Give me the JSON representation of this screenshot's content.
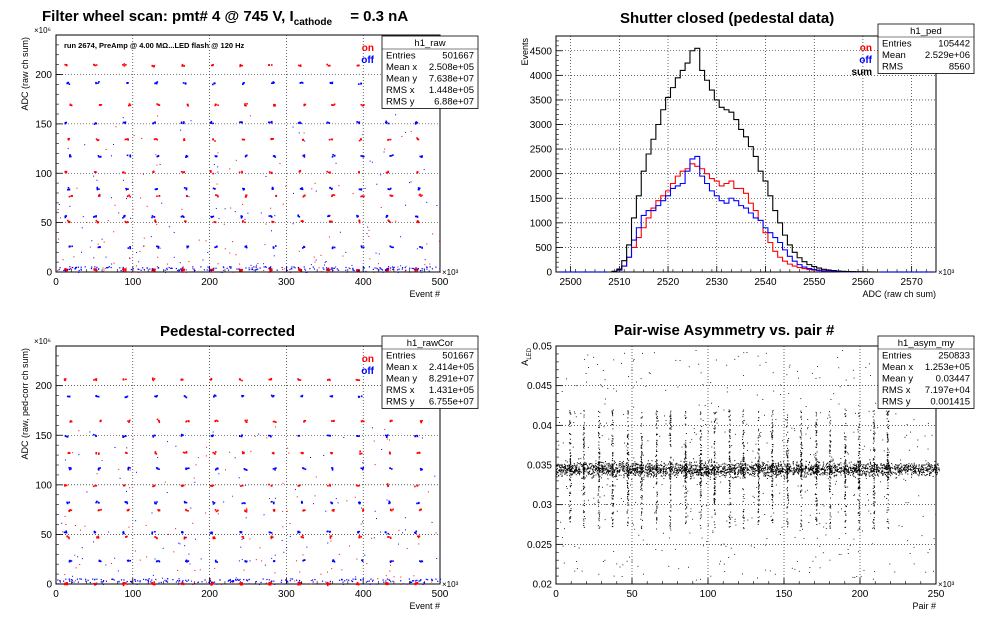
{
  "chart_data": [
    {
      "id": "raw",
      "type": "scatter",
      "title_main": "Filter wheel scan: pmt#   4 @   745 V, I",
      "title_sub": "cathode",
      "title_tail": "= 0.3 nA",
      "annotation": "run 2674, PreAmp @ 4.00 MΩ...LED flash @  120 Hz",
      "xlabel": "Event #",
      "ylabel": "ADC (raw ch sum)",
      "x_multiplier": "×10³",
      "y_multiplier": "×10⁶",
      "xlim": [
        0,
        500
      ],
      "ylim": [
        0,
        240
      ],
      "xticks": [
        "0",
        "100",
        "200",
        "300",
        "400",
        "500"
      ],
      "yticks": [
        "0",
        "50",
        "100",
        "150",
        "200"
      ],
      "grid": true,
      "legend": [
        {
          "label": "on",
          "color": "#ff0000"
        },
        {
          "label": "off",
          "color": "#0000ff"
        }
      ],
      "stats": {
        "name": "h1_raw",
        "rows": [
          [
            "Entries",
            "501667"
          ],
          [
            "Mean x",
            "2.508e+05"
          ],
          [
            "Mean y",
            "7.638e+07"
          ],
          [
            "RMS x",
            "1.448e+05"
          ],
          [
            "RMS y",
            "6.88e+07"
          ]
        ]
      },
      "levels": [
        210,
        192,
        170,
        152,
        135,
        118,
        102,
        85,
        78,
        57,
        52,
        26,
        3
      ],
      "cluster_period": 38
    },
    {
      "id": "ped",
      "type": "line",
      "title": "Shutter closed (pedestal data)",
      "xlabel": "ADC (raw ch sum)",
      "ylabel": "Events",
      "x_multiplier": "×10³",
      "xlim": [
        2497,
        2575
      ],
      "ylim": [
        0,
        4800
      ],
      "xticks": [
        "2500",
        "2510",
        "2520",
        "2530",
        "2540",
        "2550",
        "2560",
        "2570"
      ],
      "yticks": [
        "0",
        "500",
        "1000",
        "1500",
        "2000",
        "2500",
        "3000",
        "3500",
        "4000",
        "4500"
      ],
      "grid": true,
      "legend": [
        {
          "label": "on",
          "color": "#ff0000"
        },
        {
          "label": "off",
          "color": "#0000ff"
        },
        {
          "label": "sum",
          "color": "#000000"
        }
      ],
      "stats": {
        "name": "h1_ped",
        "rows": [
          [
            "Entries",
            "105442"
          ],
          [
            "Mean",
            "2.529e+06"
          ],
          [
            "RMS",
            "8560"
          ]
        ]
      },
      "x": [
        2508,
        2509,
        2510,
        2511,
        2512,
        2513,
        2514,
        2515,
        2516,
        2517,
        2518,
        2519,
        2520,
        2521,
        2522,
        2523,
        2524,
        2525,
        2526,
        2527,
        2528,
        2529,
        2530,
        2531,
        2532,
        2533,
        2534,
        2535,
        2536,
        2537,
        2538,
        2539,
        2540,
        2541,
        2542,
        2543,
        2544,
        2545,
        2546,
        2547,
        2548,
        2549,
        2550,
        2551,
        2552,
        2553,
        2554,
        2555,
        2556,
        2557,
        2558,
        2559,
        2560,
        2561,
        2562,
        2563
      ],
      "series": [
        {
          "name": "on",
          "color": "#ff0000",
          "values": [
            0,
            10,
            40,
            120,
            300,
            500,
            700,
            900,
            1100,
            1300,
            1450,
            1550,
            1650,
            1800,
            1950,
            2050,
            2100,
            2200,
            2150,
            2100,
            2000,
            1900,
            1850,
            1750,
            1800,
            1850,
            1700,
            1700,
            1600,
            1400,
            1250,
            1050,
            800,
            600,
            420,
            300,
            220,
            160,
            120,
            90,
            70,
            50,
            40,
            30,
            20,
            15,
            10,
            8,
            5,
            4,
            3,
            2,
            1,
            1,
            0,
            0
          ]
        },
        {
          "name": "off",
          "color": "#0000ff",
          "values": [
            0,
            10,
            40,
            120,
            300,
            650,
            900,
            1150,
            1250,
            1250,
            1350,
            1450,
            1550,
            1700,
            1750,
            1800,
            2050,
            2300,
            2350,
            1950,
            1800,
            1650,
            1550,
            1450,
            1400,
            1500,
            1450,
            1350,
            1300,
            1200,
            1100,
            1050,
            900,
            800,
            700,
            600,
            450,
            320,
            220,
            150,
            100,
            70,
            50,
            35,
            25,
            18,
            12,
            8,
            5,
            3,
            2,
            1,
            1,
            0,
            0,
            0
          ]
        },
        {
          "name": "sum",
          "color": "#000000",
          "values": [
            0,
            15,
            60,
            230,
            550,
            1100,
            1550,
            2050,
            2400,
            2700,
            3000,
            3300,
            3550,
            3750,
            3950,
            4100,
            4250,
            4500,
            4550,
            4100,
            3900,
            3700,
            3500,
            3350,
            3300,
            3250,
            3100,
            2900,
            2750,
            2550,
            2350,
            2050,
            1850,
            1550,
            1250,
            1000,
            750,
            550,
            400,
            290,
            210,
            150,
            110,
            80,
            55,
            40,
            30,
            20,
            15,
            10,
            7,
            5,
            3,
            2,
            1,
            0
          ]
        }
      ]
    },
    {
      "id": "rawcor",
      "type": "scatter",
      "title": "Pedestal-corrected",
      "xlabel": "Event #",
      "ylabel": "ADC (raw, ped-corr ch sum)",
      "x_multiplier": "×10³",
      "y_multiplier": "×10⁶",
      "xlim": [
        0,
        500
      ],
      "ylim": [
        0,
        240
      ],
      "xticks": [
        "0",
        "100",
        "200",
        "300",
        "400",
        "500"
      ],
      "yticks": [
        "0",
        "50",
        "100",
        "150",
        "200"
      ],
      "grid": true,
      "legend": [
        {
          "label": "on",
          "color": "#ff0000"
        },
        {
          "label": "off",
          "color": "#0000ff"
        }
      ],
      "stats": {
        "name": "h1_rawCor",
        "rows": [
          [
            "Entries",
            "501667"
          ],
          [
            "Mean x",
            "2.414e+05"
          ],
          [
            "Mean y",
            "8.291e+07"
          ],
          [
            "RMS x",
            "1.431e+05"
          ],
          [
            "RMS y",
            "6.755e+07"
          ]
        ]
      },
      "levels": [
        207,
        190,
        165,
        150,
        133,
        117,
        100,
        83,
        75,
        53,
        48,
        24,
        1
      ],
      "cluster_period": 38
    },
    {
      "id": "asym",
      "type": "scatter",
      "title": "Pair-wise Asymmetry vs. pair #",
      "xlabel": "Pair #",
      "ylabel": "A",
      "ylabel_sub": "LED",
      "x_multiplier": "×10³",
      "xlim": [
        0,
        250
      ],
      "ylim": [
        0.02,
        0.05
      ],
      "xticks": [
        "0",
        "50",
        "100",
        "150",
        "200",
        "250"
      ],
      "yticks": [
        "0.02",
        "0.025",
        "0.03",
        "0.035",
        "0.04",
        "0.045",
        "0.05"
      ],
      "grid": true,
      "stats": {
        "name": "h1_asym_my",
        "rows": [
          [
            "Entries",
            "250833"
          ],
          [
            "Mean x",
            "1.253e+05"
          ],
          [
            "Mean y",
            "0.03447"
          ],
          [
            "RMS x",
            "7.197e+04"
          ],
          [
            "RMS y",
            "0.001415"
          ]
        ]
      },
      "band_center": 0.0345,
      "spike_positions": [
        9,
        18,
        28,
        37,
        47,
        56,
        66,
        75,
        85,
        95,
        104,
        114,
        123,
        133,
        142,
        152,
        161,
        171,
        180,
        190,
        199,
        209,
        218
      ]
    }
  ]
}
